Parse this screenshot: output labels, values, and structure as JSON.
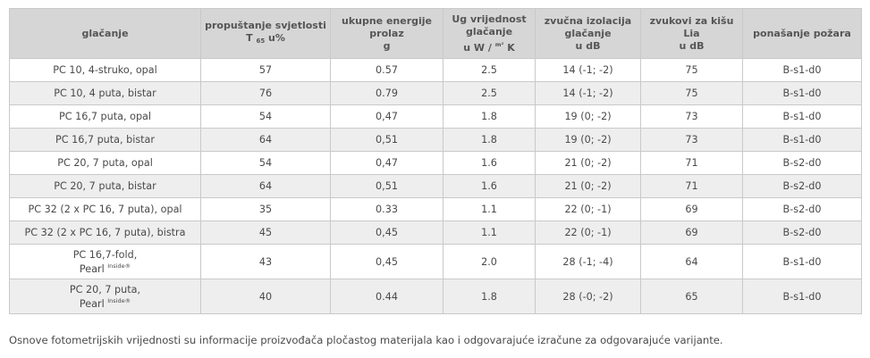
{
  "table": {
    "headers": {
      "col1": "glačanje",
      "col2_line1": "propuštanje svjetlosti",
      "col2_T": "T",
      "col2_sub": "65",
      "col2_unit": "u%",
      "col3_line1": "ukupne energije",
      "col3_line2": "prolaz",
      "col3_line3": "g",
      "col4_line1": "Ug vrijednost",
      "col4_line2": "glačanje",
      "col4_line3a": "u W /",
      "col4_sup": "m²",
      "col4_line3b": "K",
      "col5_line1": "zvučna izolacija",
      "col5_line2": "glačanje",
      "col5_line3": "u dB",
      "col6_line1": "zvukovi za kišu",
      "col6_line2": "Lia",
      "col6_line3": "u dB",
      "col7": "ponašanje požara"
    },
    "rows": [
      {
        "name": "PC 10, 4-struko, opal",
        "light": "57",
        "energy": "0.57",
        "ug": "2.5",
        "sound": "14 (-1; -2)",
        "rain": "75",
        "fire": "B-s1-d0"
      },
      {
        "name": "PC 10, 4 puta, bistar",
        "light": "76",
        "energy": "0.79",
        "ug": "2.5",
        "sound": "14 (-1; -2)",
        "rain": "75",
        "fire": "B-s1-d0"
      },
      {
        "name": "PC 16,7 puta, opal",
        "light": "54",
        "energy": "0,47",
        "ug": "1.8",
        "sound": "19 (0; -2)",
        "rain": "73",
        "fire": "B-s1-d0"
      },
      {
        "name": "PC 16,7 puta, bistar",
        "light": "64",
        "energy": "0,51",
        "ug": "1.8",
        "sound": "19 (0; -2)",
        "rain": "73",
        "fire": "B-s1-d0"
      },
      {
        "name": "PC 20, 7 puta, opal",
        "light": "54",
        "energy": "0,47",
        "ug": "1.6",
        "sound": "21 (0; -2)",
        "rain": "71",
        "fire": "B-s2-d0"
      },
      {
        "name": "PC 20, 7 puta, bistar",
        "light": "64",
        "energy": "0,51",
        "ug": "1.6",
        "sound": "21 (0; -2)",
        "rain": "71",
        "fire": "B-s2-d0"
      },
      {
        "name": "PC 32 (2 x PC 16, 7 puta), opal",
        "light": "35",
        "energy": "0.33",
        "ug": "1.1",
        "sound": "22 (0; -1)",
        "rain": "69",
        "fire": "B-s2-d0"
      },
      {
        "name": "PC 32 (2 x PC 16, 7 puta), bistra",
        "light": "45",
        "energy": "0,45",
        "ug": "1.1",
        "sound": "22 (0; -1)",
        "rain": "69",
        "fire": "B-s2-d0"
      },
      {
        "name_line1": "PC 16,7-fold,",
        "name_line2": "Pearl",
        "name_sup": "Inside®",
        "light": "43",
        "energy": "0,45",
        "ug": "2.0",
        "sound": "28 (-1; -4)",
        "rain": "64",
        "fire": "B-s1-d0"
      },
      {
        "name_line1": "PC 20, 7 puta,",
        "name_line2": "Pearl",
        "name_sup": "Inside®",
        "light": "40",
        "energy": "0.44",
        "ug": "1.8",
        "sound": "28 (-0; -2)",
        "rain": "65",
        "fire": "B-s1-d0"
      }
    ]
  },
  "footnote": "Osnove fotometrijskih vrijednosti su informacije proizvođača pločastog materijala kao i odgovarajuće izračune za odgovarajuće varijante."
}
